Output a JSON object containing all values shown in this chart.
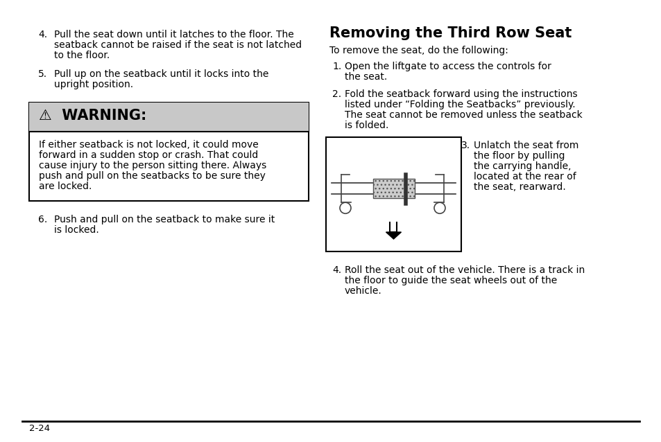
{
  "bg_color": "#ffffff",
  "page_num": "2-24",
  "left_col": {
    "warning_header_bg": "#c8c8c8",
    "warning_border": "#000000",
    "warning_body_lines": [
      "If either seatback is not locked, it could move",
      "forward in a sudden stop or crash. That could",
      "cause injury to the person sitting there. Always",
      "push and pull on the seatbacks to be sure they",
      "are locked."
    ]
  },
  "font_size_body": 10.0,
  "font_size_title": 15,
  "font_size_warning_header": 15,
  "font_size_page": 9.5
}
